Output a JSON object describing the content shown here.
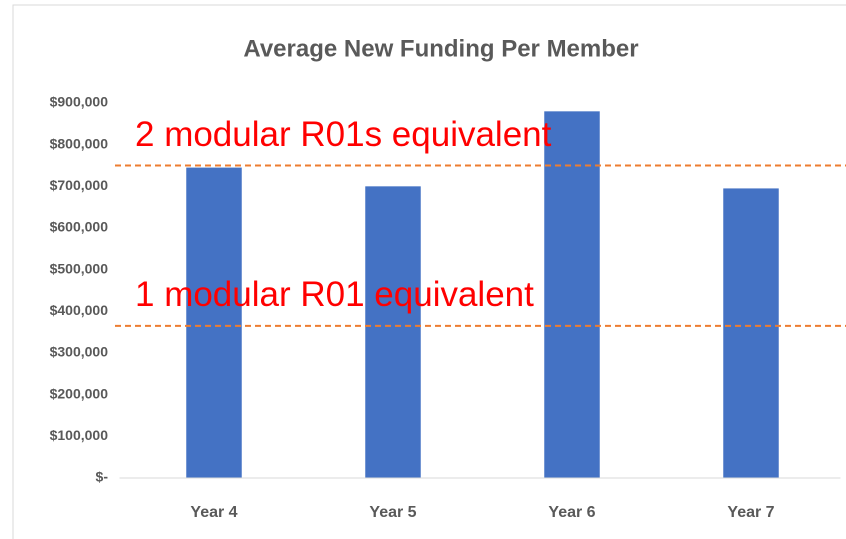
{
  "chart_data": {
    "type": "bar",
    "title": "Average New Funding Per Member",
    "categories": [
      "Year 4",
      "Year 5",
      "Year 6",
      "Year 7"
    ],
    "values": [
      745000,
      700000,
      880000,
      695000
    ],
    "color": "#4472c4",
    "ylim": [
      0,
      900000
    ],
    "yticks": [
      {
        "value": 0,
        "label": "$-"
      },
      {
        "value": 100000,
        "label": "$100,000"
      },
      {
        "value": 200000,
        "label": "$200,000"
      },
      {
        "value": 300000,
        "label": "$300,000"
      },
      {
        "value": 400000,
        "label": "$400,000"
      },
      {
        "value": 500000,
        "label": "$500,000"
      },
      {
        "value": 600000,
        "label": "$600,000"
      },
      {
        "value": 700000,
        "label": "$700,000"
      },
      {
        "value": 800000,
        "label": "$800,000"
      },
      {
        "value": 900000,
        "label": "$900,000"
      }
    ],
    "grid": false,
    "reference_lines": [
      {
        "value": 750000,
        "label": "2 modular R01s equivalent",
        "color": "#ed7d31"
      },
      {
        "value": 365000,
        "label": "1 modular R01 equivalent",
        "color": "#ed7d31"
      }
    ]
  }
}
